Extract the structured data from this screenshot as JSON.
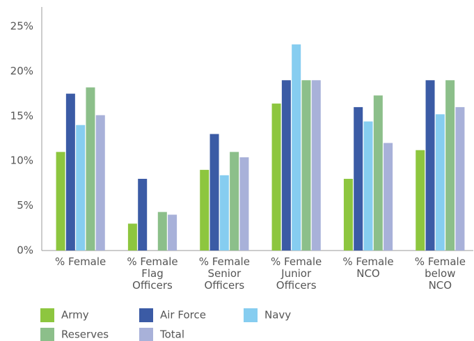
{
  "chart_data": {
    "type": "bar",
    "categories": [
      "% Female",
      "% Female\nFlag\nOfficers",
      "% Female\nSenior\nOfficers",
      "% Female\nJunior\nOfficers",
      "% Female\nNCO",
      "% Female\nbelow\nNCO"
    ],
    "series": [
      {
        "name": "Army",
        "color": "#8dc63f",
        "values": [
          11,
          3,
          9,
          16.4,
          8,
          11.2
        ]
      },
      {
        "name": "Air Force",
        "color": "#3b5ba5",
        "values": [
          17.5,
          8,
          13,
          19,
          16,
          19
        ]
      },
      {
        "name": "Navy",
        "color": "#86cdf0",
        "values": [
          14,
          0,
          8.4,
          23,
          14.4,
          15.2
        ]
      },
      {
        "name": "Reserves",
        "color": "#8cbf8a",
        "values": [
          18.2,
          4.3,
          11,
          19,
          17.3,
          19
        ]
      },
      {
        "name": "Total",
        "color": "#a8b1d9",
        "values": [
          15.1,
          4,
          10.4,
          19,
          12,
          16
        ]
      }
    ],
    "ylim": [
      0,
      25
    ],
    "yticks": [
      {
        "value": 0,
        "label": "0%"
      },
      {
        "value": 5,
        "label": "5%"
      },
      {
        "value": 10,
        "label": "10%"
      },
      {
        "value": 15,
        "label": "15%"
      },
      {
        "value": 20,
        "label": "20%"
      },
      {
        "value": 25,
        "label": "25%"
      }
    ],
    "grid": false,
    "legend": "bottom"
  }
}
